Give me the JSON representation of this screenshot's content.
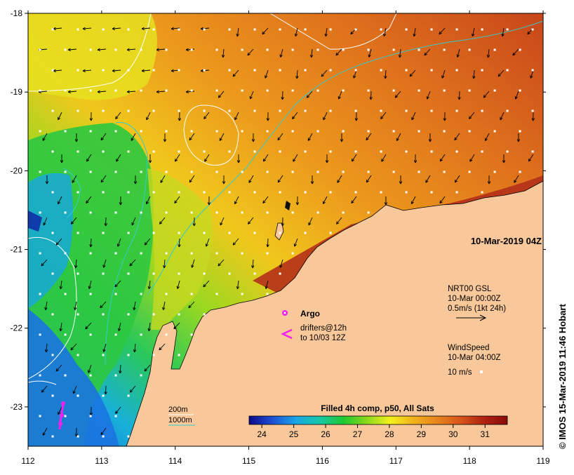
{
  "map": {
    "timestamp": "10-Mar-2019 04Z",
    "credit": "© IMOS 15-Mar-2019 11:46 Hobart",
    "x_axis": {
      "range": [
        112,
        119
      ],
      "ticks": [
        "112",
        "113",
        "114",
        "115",
        "116",
        "117",
        "118",
        "119"
      ]
    },
    "y_axis": {
      "range": [
        -23.5,
        -18
      ],
      "ticks": [
        "-18",
        "-19",
        "-20",
        "-21",
        "-22",
        "-23"
      ]
    },
    "land_color": "#f9c89a"
  },
  "currents": {
    "title": "NRT00 GSL",
    "time": "10-Mar 00:00Z",
    "scale": "0.5m/s (1kt 24h)"
  },
  "wind": {
    "title": "WindSpeed",
    "time": "10-Mar 04:00Z",
    "scale": "10 m/s"
  },
  "argo": {
    "label": "Argo",
    "color": "#ee22ee"
  },
  "drifters": {
    "line1": "drifters@12h",
    "line2": "to 10/03 12Z",
    "color": "#ee22ee"
  },
  "depth_legend": {
    "items": [
      {
        "label": "200m",
        "color": "#ffffff"
      },
      {
        "label": "1000m",
        "color": "#33cccc"
      }
    ]
  },
  "colorbar": {
    "title": "Filled 4h comp, p50, All Sats",
    "range": [
      23.6,
      31.7
    ],
    "ticks": [
      "24",
      "25",
      "26",
      "27",
      "28",
      "29",
      "30",
      "31"
    ],
    "colors": [
      "#0a0a8a",
      "#1f4fd6",
      "#1aa6e6",
      "#16c8a8",
      "#1ec832",
      "#8ad81c",
      "#f2f21c",
      "#f2b21c",
      "#e8841c",
      "#d8561a",
      "#b02210",
      "#8a0a0a"
    ]
  }
}
